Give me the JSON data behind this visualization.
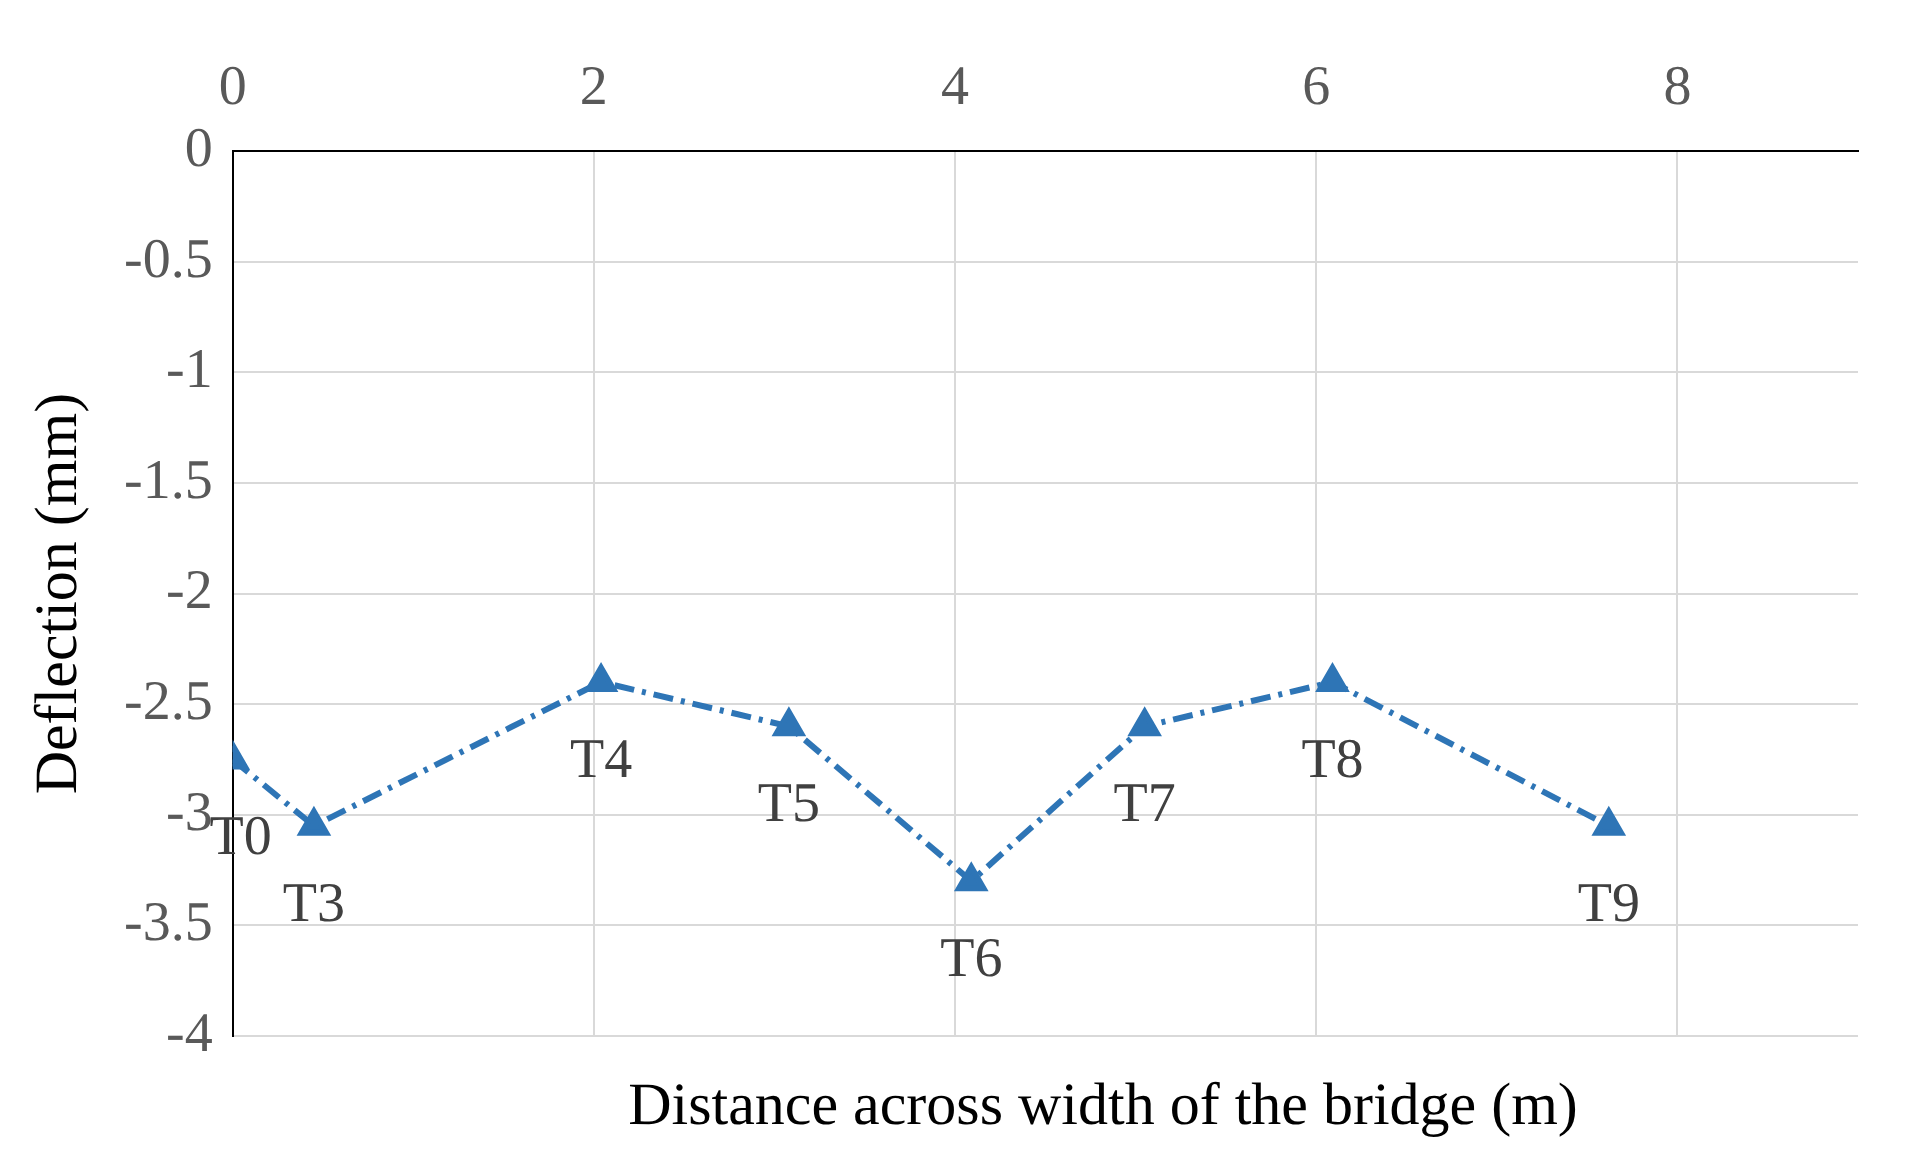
{
  "chart_data": {
    "type": "line",
    "xlabel": "Distance across width of the bridge (m)",
    "ylabel": "Deflection (mm)",
    "x": [
      0,
      0.45,
      2.04,
      3.08,
      4.09,
      5.05,
      6.09,
      7.62
    ],
    "series": [
      {
        "color": "#2e75b6",
        "values": [
          -2.75,
          -3.05,
          -2.4,
          -2.6,
          -3.3,
          -2.6,
          -2.4,
          -3.05
        ]
      }
    ],
    "xlim": [
      0,
      9
    ],
    "xticks": [
      0,
      2,
      4,
      6,
      8
    ],
    "ylim": [
      -4,
      0
    ],
    "yticks": [
      -4,
      -3.5,
      -3,
      -2.5,
      -2,
      -1.5,
      -1,
      -0.5,
      0
    ],
    "grid": true,
    "marker": "triangle",
    "line_style": "dashed",
    "legend": false,
    "annotations": [
      {
        "text": "T0",
        "x": 0,
        "y": -2.75
      },
      {
        "text": "T3",
        "x": 0.45,
        "y": -3.05
      },
      {
        "text": "T4",
        "x": 2.04,
        "y": -2.4
      },
      {
        "text": "T5",
        "x": 3.08,
        "y": -2.6
      },
      {
        "text": "T6",
        "x": 4.09,
        "y": -3.3
      },
      {
        "text": "T7",
        "x": 5.05,
        "y": -2.6
      },
      {
        "text": "T8",
        "x": 6.09,
        "y": -2.4
      },
      {
        "text": "T9",
        "x": 7.62,
        "y": -3.05
      }
    ]
  }
}
